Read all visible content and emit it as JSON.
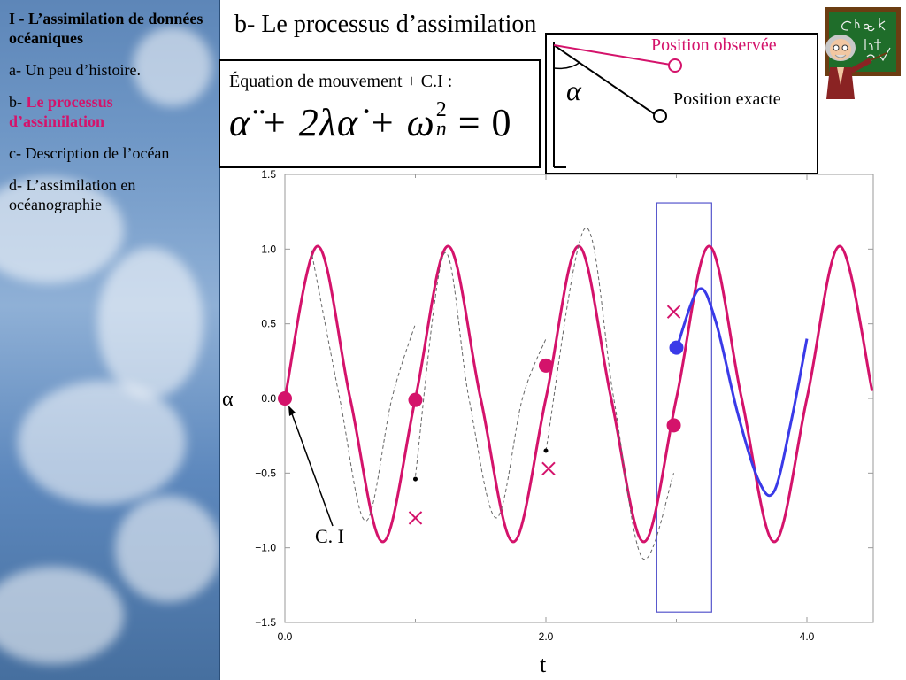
{
  "sidebar": {
    "section_title": "I - L’assimilation de données océaniques",
    "items": [
      {
        "prefix": "a- ",
        "label": "Un peu d’histoire.",
        "active": false
      },
      {
        "prefix": "b- ",
        "label": "Le processus d’assimilation",
        "active": true
      },
      {
        "prefix": "c-  ",
        "label": "Description de l’océan",
        "active": false
      },
      {
        "prefix": "d-  ",
        "label": "L’assimilation en océanographie",
        "active": false
      }
    ]
  },
  "slide": {
    "title": "b- Le processus d’assimilation"
  },
  "equation": {
    "label": "Équation de mouvement + C.I :",
    "formula_main": "α̈ + 2λα̇ + ω",
    "formula_sup": "2",
    "formula_sub": "n",
    "formula_end": " = 0"
  },
  "pendulum": {
    "alpha_symbol": "α",
    "observed_label": "Position observée",
    "exact_label": "Position exacte"
  },
  "chart_data": {
    "type": "line",
    "xlabel": "t",
    "ylabel": "α",
    "xlim": [
      0,
      4.5
    ],
    "ylim": [
      -1.5,
      1.5
    ],
    "x_ticks": [
      "0.0",
      "2.0",
      "4.0"
    ],
    "y_ticks": [
      "1.5",
      "1.0",
      "0.5",
      "0.0",
      "−0.5",
      "−1.0",
      "−1.5"
    ],
    "annotation": "C. I",
    "series": [
      {
        "style": "magenta-solid",
        "x": [
          0.0,
          0.25,
          0.5,
          0.75,
          1.0,
          1.25,
          1.5,
          1.75,
          2.0,
          2.25,
          2.5,
          2.75,
          3.0,
          3.25,
          3.5,
          3.75,
          4.0,
          4.25,
          4.5
        ],
        "values": [
          0.0,
          1.02,
          0.0,
          -0.96,
          0.0,
          1.02,
          0.0,
          -0.96,
          0.0,
          1.02,
          0.0,
          -0.96,
          0.0,
          1.02,
          0.0,
          -0.96,
          0.0,
          1.02,
          0.05
        ]
      },
      {
        "style": "gray-dashed",
        "x": [
          0.2,
          0.42,
          0.62,
          0.82,
          1.0
        ],
        "values": [
          1.0,
          0.0,
          -0.82,
          0.0,
          0.5
        ]
      },
      {
        "style": "gray-dashed",
        "x": [
          1.0,
          1.22,
          1.41,
          1.62,
          1.82,
          2.0
        ],
        "values": [
          -0.52,
          0.97,
          0.0,
          -0.8,
          0.0,
          0.4
        ]
      },
      {
        "style": "gray-dashed",
        "x": [
          2.0,
          2.3,
          2.52,
          2.74,
          2.98
        ],
        "values": [
          -0.35,
          1.14,
          0.0,
          -1.07,
          -0.5
        ]
      },
      {
        "style": "blue-solid",
        "x": [
          3.0,
          3.17,
          3.3,
          3.47,
          3.63,
          3.75,
          3.88,
          4.0
        ],
        "values": [
          0.33,
          0.73,
          0.52,
          -0.1,
          -0.55,
          -0.62,
          -0.15,
          0.4
        ]
      }
    ],
    "filled_markers": [
      {
        "x": 0.0,
        "y": 0.0,
        "color": "#d4136b"
      },
      {
        "x": 1.0,
        "y": -0.01,
        "color": "#d4136b"
      },
      {
        "x": 2.0,
        "y": 0.22,
        "color": "#d4136b"
      },
      {
        "x": 2.98,
        "y": -0.18,
        "color": "#d4136b"
      },
      {
        "x": 3.0,
        "y": 0.34,
        "color": "#3a3ae8"
      }
    ],
    "cross_markers": [
      {
        "x": 1.0,
        "y": -0.8
      },
      {
        "x": 2.02,
        "y": -0.47
      },
      {
        "x": 2.98,
        "y": 0.58
      }
    ],
    "small_dots": [
      {
        "x": 1.0,
        "y": -0.54
      },
      {
        "x": 2.0,
        "y": -0.35
      }
    ],
    "highlight_range": {
      "x": [
        2.85,
        3.27
      ],
      "y": [
        -1.43,
        1.31
      ]
    }
  },
  "colors": {
    "accent": "#d4136b",
    "analysis": "#3a3ae8",
    "sky": "#6f97c6"
  }
}
